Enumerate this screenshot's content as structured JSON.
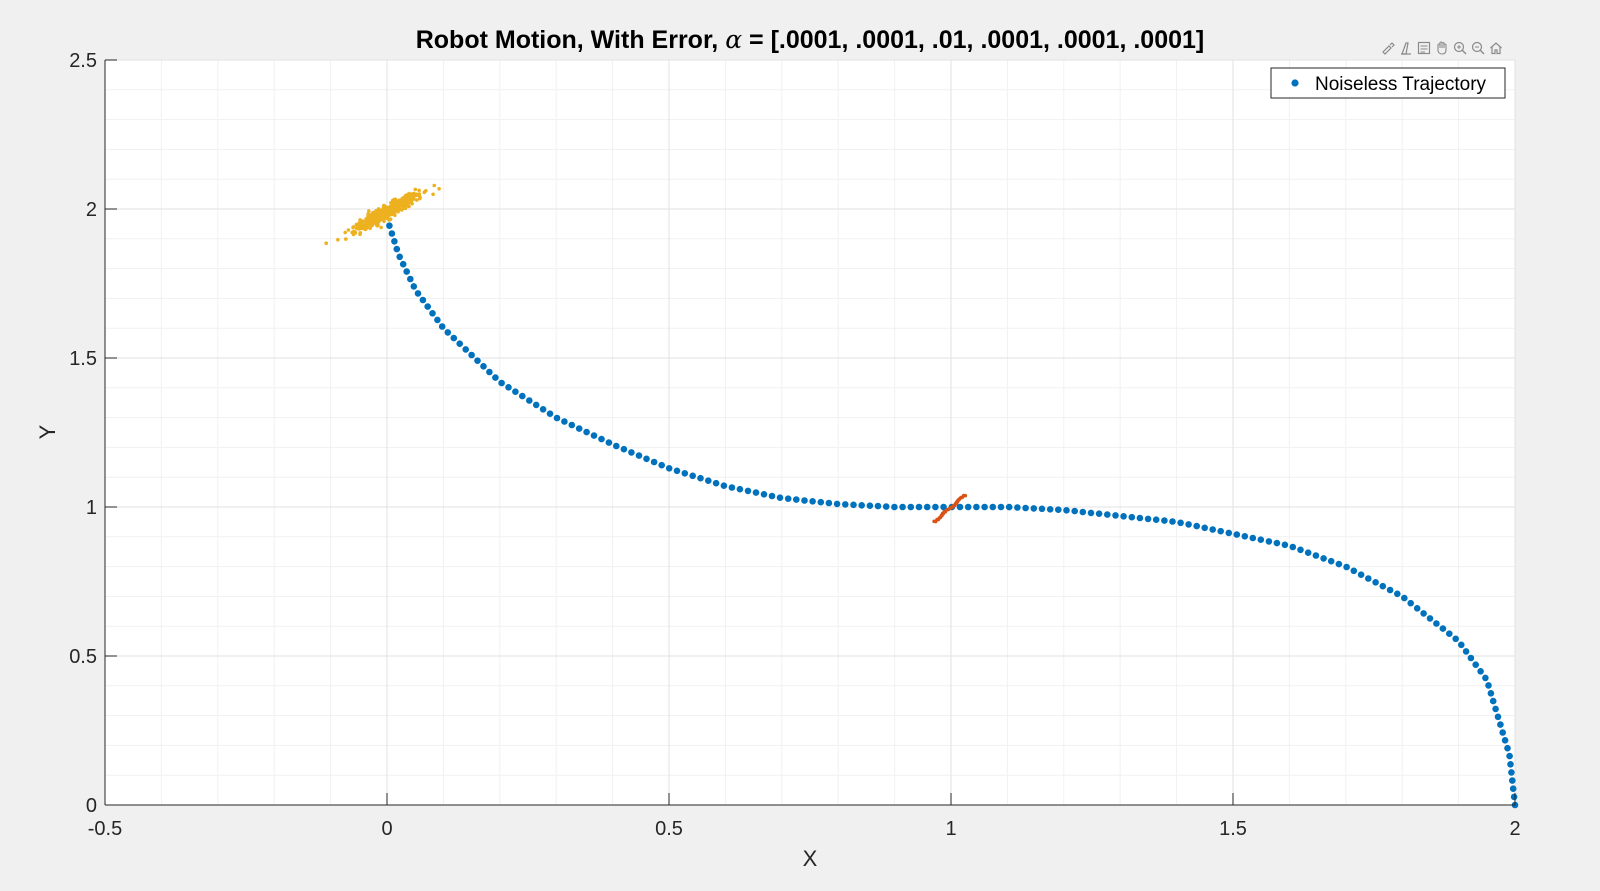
{
  "chart_data": {
    "type": "scatter",
    "title_prefix": "Robot Motion, With Error, ",
    "title_symbol": "α",
    "title_suffix": " = [.0001, .0001, .01, .0001, .0001, .0001]",
    "xlabel": "X",
    "ylabel": "Y",
    "xlim": [
      -0.5,
      2
    ],
    "ylim": [
      0,
      2.5
    ],
    "xticks": [
      -0.5,
      0,
      0.5,
      1,
      1.5,
      2
    ],
    "xtick_labels": [
      "-0.5",
      "0",
      "0.5",
      "1",
      "1.5",
      "2"
    ],
    "yticks": [
      0,
      0.5,
      1,
      1.5,
      2,
      2.5
    ],
    "ytick_labels": [
      "0",
      "0.5",
      "1",
      "1.5",
      "2",
      "2.5"
    ],
    "grid": true,
    "minor_grid": true,
    "legend": {
      "placement": "top-right",
      "entries": [
        "Noiseless Trajectory"
      ]
    },
    "series": [
      {
        "name": "Noiseless Trajectory",
        "color": "#0072BD",
        "marker": "dot",
        "description_points": [
          [
            2.0,
            0.0
          ],
          [
            1.99,
            0.17
          ],
          [
            1.95,
            0.42
          ],
          [
            1.9,
            0.55
          ],
          [
            1.8,
            0.7
          ],
          [
            1.7,
            0.8
          ],
          [
            1.6,
            0.87
          ],
          [
            1.5,
            0.91
          ],
          [
            1.4,
            0.95
          ],
          [
            1.3,
            0.97
          ],
          [
            1.2,
            0.99
          ],
          [
            1.1,
            1.0
          ],
          [
            1.0,
            1.0
          ],
          [
            0.9,
            1.0
          ],
          [
            0.8,
            1.01
          ],
          [
            0.7,
            1.03
          ],
          [
            0.6,
            1.07
          ],
          [
            0.5,
            1.13
          ],
          [
            0.4,
            1.21
          ],
          [
            0.3,
            1.3
          ],
          [
            0.2,
            1.42
          ],
          [
            0.1,
            1.6
          ],
          [
            0.05,
            1.73
          ],
          [
            0.02,
            1.85
          ],
          [
            0.0,
            1.97
          ]
        ]
      },
      {
        "color": "#D95319",
        "marker": "dot",
        "points": [
          [
            0.97,
            0.95
          ],
          [
            0.985,
            0.97
          ],
          [
            1.0,
            1.0
          ],
          [
            1.01,
            1.02
          ],
          [
            1.025,
            1.04
          ]
        ]
      },
      {
        "color": "#EDB120",
        "marker": "dot",
        "cluster": {
          "center": [
            0.0,
            1.99
          ],
          "spread_along": 0.08,
          "spread_across": 0.008,
          "slope": 1.1,
          "count": 420,
          "extent_x": [
            -0.11,
            0.11
          ]
        }
      }
    ]
  },
  "toolbar": {
    "icons": [
      "brush-icon",
      "data-tips-icon",
      "datatip-table-icon",
      "pan-icon",
      "zoom-in-icon",
      "zoom-out-icon",
      "home-icon"
    ]
  }
}
